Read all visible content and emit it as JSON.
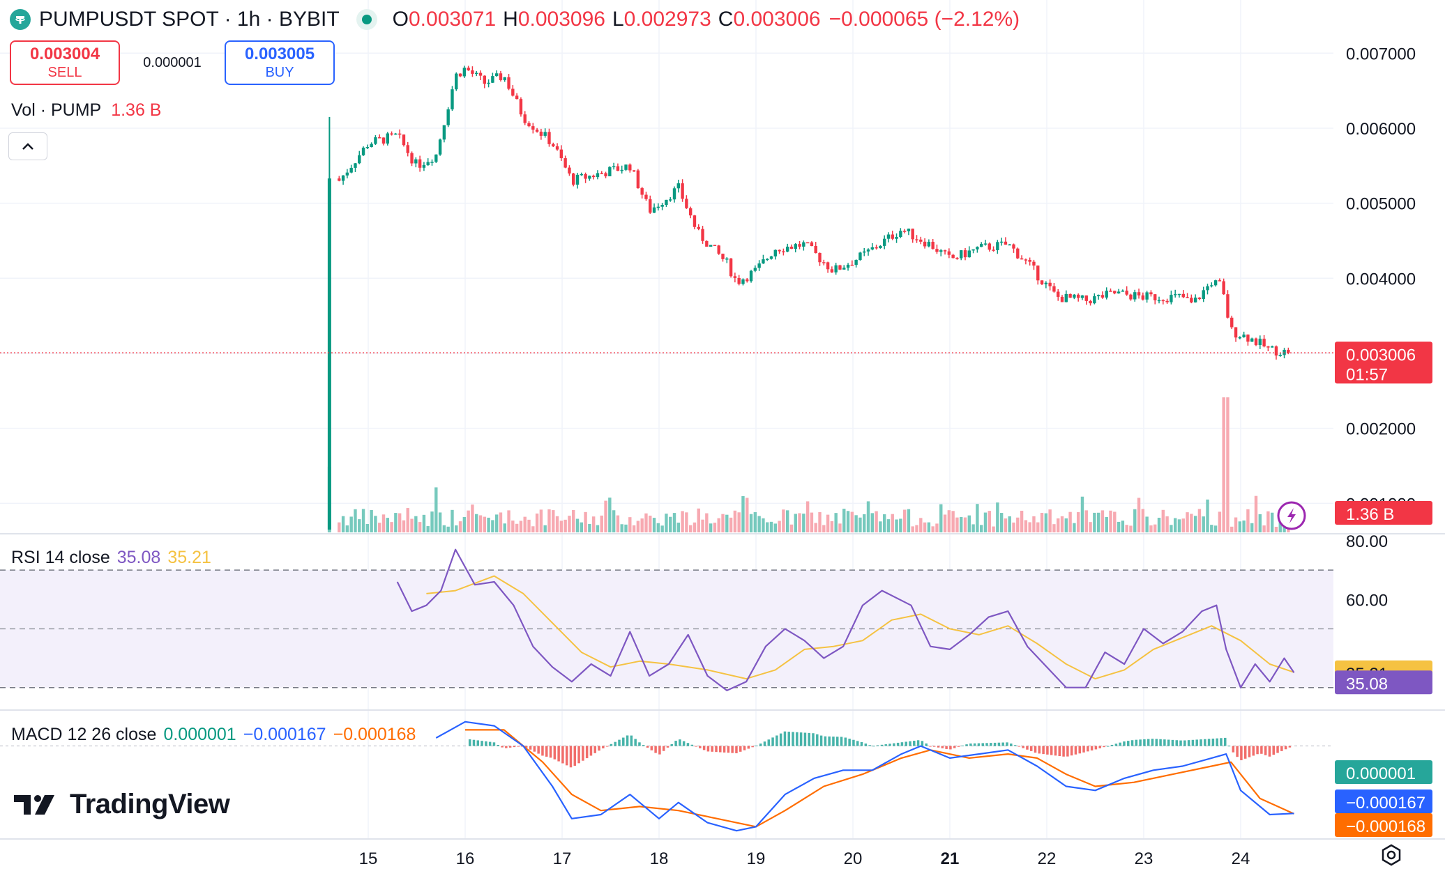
{
  "header": {
    "symbol_line": "PUMPUSDT SPOT · 1h · BYBIT",
    "ohlc": [
      {
        "key": "O",
        "value": "0.003071"
      },
      {
        "key": "H",
        "value": "0.003096"
      },
      {
        "key": "L",
        "value": "0.002973"
      },
      {
        "key": "C",
        "value": "0.003006"
      }
    ],
    "change": "−0.000065 (−2.12%)"
  },
  "trade": {
    "sell_price": "0.003004",
    "sell_label": "SELL",
    "spread": "0.000001",
    "buy_price": "0.003005",
    "buy_label": "BUY"
  },
  "volume_legend": {
    "label": "Vol · PUMP",
    "value": "1.36 B"
  },
  "rsi_legend": {
    "label": "RSI 14 close",
    "value": "35.08",
    "ma": "35.21"
  },
  "macd_legend": {
    "label": "MACD 12 26 close",
    "hist": "0.000001",
    "macd": "−0.000167",
    "signal": "−0.000168"
  },
  "branding": {
    "name": "TradingView"
  },
  "colors": {
    "up": "#089981",
    "down": "#f23645",
    "up_vol": "#76c9bd",
    "down_vol": "#f7a9b1",
    "rsi_line": "#7e57c2",
    "rsi_ma": "#f5c242",
    "macd_line": "#2962ff",
    "signal_line": "#ff6d00",
    "hist_up": "#26a69a",
    "hist_down": "#ef5350",
    "grid": "#f0f3fa"
  },
  "icons": {
    "logo": "tether-icon",
    "live": "live-dot-icon",
    "collapse": "chevron-up-icon",
    "lightning": "lightning-icon",
    "settings": "gear-icon"
  },
  "chart_data": [
    {
      "type": "candlestick",
      "symbol": "PUMPUSDT",
      "interval": "1h",
      "x_ticks": [
        "15",
        "16",
        "17",
        "18",
        "19",
        "20",
        "21",
        "22",
        "23",
        "24"
      ],
      "y_ticks": [
        "0.007000",
        "0.006000",
        "0.005000",
        "0.004000",
        "0.002000",
        "0.001000"
      ],
      "ylim": [
        0.00065,
        0.00717
      ],
      "last_price": "0.003006",
      "countdown": "01:57",
      "volume_label": "1.36 B",
      "close_path_daily": [
        {
          "day": 14.6,
          "open": 0.00065,
          "close": 0.00533
        },
        {
          "day": 14.7,
          "close": 0.0053
        },
        {
          "day": 15.0,
          "close": 0.0058
        },
        {
          "day": 15.3,
          "close": 0.0059
        },
        {
          "day": 15.5,
          "close": 0.0055
        },
        {
          "day": 15.7,
          "close": 0.00565
        },
        {
          "day": 15.9,
          "close": 0.0067
        },
        {
          "day": 16.0,
          "close": 0.0068
        },
        {
          "day": 16.2,
          "close": 0.0066
        },
        {
          "day": 16.4,
          "close": 0.0067
        },
        {
          "day": 16.6,
          "close": 0.00615
        },
        {
          "day": 16.9,
          "close": 0.0058
        },
        {
          "day": 17.1,
          "close": 0.0053
        },
        {
          "day": 17.4,
          "close": 0.0054
        },
        {
          "day": 17.7,
          "close": 0.0055
        },
        {
          "day": 17.9,
          "close": 0.0049
        },
        {
          "day": 18.2,
          "close": 0.0052
        },
        {
          "day": 18.4,
          "close": 0.0046
        },
        {
          "day": 18.7,
          "close": 0.0042
        },
        {
          "day": 18.8,
          "close": 0.00395
        },
        {
          "day": 19.0,
          "close": 0.0041
        },
        {
          "day": 19.2,
          "close": 0.0044
        },
        {
          "day": 19.5,
          "close": 0.00445
        },
        {
          "day": 19.8,
          "close": 0.0041
        },
        {
          "day": 20.1,
          "close": 0.0043
        },
        {
          "day": 20.5,
          "close": 0.00465
        },
        {
          "day": 20.8,
          "close": 0.00445
        },
        {
          "day": 21.0,
          "close": 0.00425
        },
        {
          "day": 21.3,
          "close": 0.0044
        },
        {
          "day": 21.6,
          "close": 0.00445
        },
        {
          "day": 21.8,
          "close": 0.0042
        },
        {
          "day": 22.1,
          "close": 0.00375
        },
        {
          "day": 22.4,
          "close": 0.0037
        },
        {
          "day": 22.7,
          "close": 0.0038
        },
        {
          "day": 23.0,
          "close": 0.00375
        },
        {
          "day": 23.4,
          "close": 0.00375
        },
        {
          "day": 23.5,
          "close": 0.00365
        },
        {
          "day": 23.7,
          "close": 0.00395
        },
        {
          "day": 23.8,
          "close": 0.0039
        },
        {
          "day": 23.9,
          "close": 0.0033
        },
        {
          "day": 24.1,
          "close": 0.0032
        },
        {
          "day": 24.3,
          "close": 0.00305
        },
        {
          "day": 24.5,
          "close": 0.003006
        }
      ],
      "volume_spikes": [
        {
          "day": 14.6,
          "value": 0.00095
        },
        {
          "day": 15.7,
          "value": 0.0006
        },
        {
          "day": 23.55,
          "value": 0.00022
        },
        {
          "day": 23.85,
          "value": 0.0018
        }
      ]
    },
    {
      "type": "line",
      "name": "RSI 14 close",
      "y_ticks": [
        "80.00",
        "60.00"
      ],
      "ylim": [
        24,
        80
      ],
      "levels": [
        70,
        50,
        30
      ],
      "rsi_value": "35.08",
      "ma_value": "35.21",
      "rsi": [
        {
          "day": 15.3,
          "value": 66
        },
        {
          "day": 15.45,
          "value": 56
        },
        {
          "day": 15.6,
          "value": 58
        },
        {
          "day": 15.75,
          "value": 63
        },
        {
          "day": 15.9,
          "value": 77
        },
        {
          "day": 16.1,
          "value": 65
        },
        {
          "day": 16.3,
          "value": 66
        },
        {
          "day": 16.5,
          "value": 58
        },
        {
          "day": 16.7,
          "value": 44
        },
        {
          "day": 16.9,
          "value": 37
        },
        {
          "day": 17.1,
          "value": 32
        },
        {
          "day": 17.3,
          "value": 38
        },
        {
          "day": 17.5,
          "value": 34
        },
        {
          "day": 17.7,
          "value": 49
        },
        {
          "day": 17.9,
          "value": 34
        },
        {
          "day": 18.1,
          "value": 38
        },
        {
          "day": 18.3,
          "value": 48
        },
        {
          "day": 18.5,
          "value": 34
        },
        {
          "day": 18.7,
          "value": 29
        },
        {
          "day": 18.9,
          "value": 32
        },
        {
          "day": 19.1,
          "value": 44
        },
        {
          "day": 19.3,
          "value": 50
        },
        {
          "day": 19.5,
          "value": 46
        },
        {
          "day": 19.7,
          "value": 40
        },
        {
          "day": 19.9,
          "value": 44
        },
        {
          "day": 20.1,
          "value": 58
        },
        {
          "day": 20.3,
          "value": 63
        },
        {
          "day": 20.6,
          "value": 58
        },
        {
          "day": 20.8,
          "value": 44
        },
        {
          "day": 21.0,
          "value": 43
        },
        {
          "day": 21.2,
          "value": 48
        },
        {
          "day": 21.4,
          "value": 54
        },
        {
          "day": 21.6,
          "value": 56
        },
        {
          "day": 21.8,
          "value": 44
        },
        {
          "day": 22.0,
          "value": 37
        },
        {
          "day": 22.2,
          "value": 30
        },
        {
          "day": 22.4,
          "value": 30
        },
        {
          "day": 22.6,
          "value": 42
        },
        {
          "day": 22.8,
          "value": 38
        },
        {
          "day": 23.0,
          "value": 50
        },
        {
          "day": 23.2,
          "value": 45
        },
        {
          "day": 23.4,
          "value": 49
        },
        {
          "day": 23.6,
          "value": 56
        },
        {
          "day": 23.75,
          "value": 58
        },
        {
          "day": 23.85,
          "value": 43
        },
        {
          "day": 24.0,
          "value": 30
        },
        {
          "day": 24.15,
          "value": 38
        },
        {
          "day": 24.3,
          "value": 32
        },
        {
          "day": 24.45,
          "value": 40
        },
        {
          "day": 24.55,
          "value": 35.08
        }
      ],
      "rsi_ma": [
        {
          "day": 15.6,
          "value": 62
        },
        {
          "day": 15.9,
          "value": 63
        },
        {
          "day": 16.3,
          "value": 68
        },
        {
          "day": 16.6,
          "value": 62
        },
        {
          "day": 16.9,
          "value": 52
        },
        {
          "day": 17.2,
          "value": 42
        },
        {
          "day": 17.5,
          "value": 37
        },
        {
          "day": 17.8,
          "value": 39
        },
        {
          "day": 18.1,
          "value": 38
        },
        {
          "day": 18.5,
          "value": 36
        },
        {
          "day": 18.9,
          "value": 33
        },
        {
          "day": 19.2,
          "value": 36
        },
        {
          "day": 19.5,
          "value": 43
        },
        {
          "day": 19.8,
          "value": 44
        },
        {
          "day": 20.1,
          "value": 46
        },
        {
          "day": 20.4,
          "value": 53
        },
        {
          "day": 20.7,
          "value": 55
        },
        {
          "day": 21.0,
          "value": 50
        },
        {
          "day": 21.3,
          "value": 48
        },
        {
          "day": 21.6,
          "value": 51
        },
        {
          "day": 21.9,
          "value": 45
        },
        {
          "day": 22.2,
          "value": 38
        },
        {
          "day": 22.5,
          "value": 33
        },
        {
          "day": 22.8,
          "value": 36
        },
        {
          "day": 23.1,
          "value": 43
        },
        {
          "day": 23.4,
          "value": 47
        },
        {
          "day": 23.7,
          "value": 51
        },
        {
          "day": 24.0,
          "value": 46
        },
        {
          "day": 24.3,
          "value": 38
        },
        {
          "day": 24.55,
          "value": 35.21
        }
      ]
    },
    {
      "type": "line",
      "name": "MACD 12 26 close",
      "hist_value": "0.000001",
      "macd_value": "−0.000167",
      "signal_value": "−0.000168",
      "ylim": [
        -0.00022,
        7e-05
      ],
      "macd": [
        {
          "day": 15.7,
          "value": 2e-05
        },
        {
          "day": 16.0,
          "value": 6e-05
        },
        {
          "day": 16.3,
          "value": 5e-05
        },
        {
          "day": 16.6,
          "value": 0.0
        },
        {
          "day": 16.9,
          "value": -0.0001
        },
        {
          "day": 17.1,
          "value": -0.00018
        },
        {
          "day": 17.4,
          "value": -0.00017
        },
        {
          "day": 17.7,
          "value": -0.00012
        },
        {
          "day": 18.0,
          "value": -0.00018
        },
        {
          "day": 18.2,
          "value": -0.00014
        },
        {
          "day": 18.5,
          "value": -0.00019
        },
        {
          "day": 18.8,
          "value": -0.00021
        },
        {
          "day": 19.0,
          "value": -0.0002
        },
        {
          "day": 19.3,
          "value": -0.00012
        },
        {
          "day": 19.6,
          "value": -8e-05
        },
        {
          "day": 19.9,
          "value": -6e-05
        },
        {
          "day": 20.2,
          "value": -6e-05
        },
        {
          "day": 20.5,
          "value": -2e-05
        },
        {
          "day": 20.7,
          "value": 0.0
        },
        {
          "day": 21.0,
          "value": -3e-05
        },
        {
          "day": 21.3,
          "value": -2e-05
        },
        {
          "day": 21.6,
          "value": -1e-05
        },
        {
          "day": 21.9,
          "value": -5e-05
        },
        {
          "day": 22.2,
          "value": -0.0001
        },
        {
          "day": 22.5,
          "value": -0.00011
        },
        {
          "day": 22.8,
          "value": -8e-05
        },
        {
          "day": 23.1,
          "value": -6e-05
        },
        {
          "day": 23.4,
          "value": -5e-05
        },
        {
          "day": 23.7,
          "value": -3e-05
        },
        {
          "day": 23.85,
          "value": -2e-05
        },
        {
          "day": 24.0,
          "value": -0.00011
        },
        {
          "day": 24.3,
          "value": -0.00017
        },
        {
          "day": 24.55,
          "value": -0.000167
        }
      ],
      "signal": [
        {
          "day": 16.0,
          "value": 4e-05
        },
        {
          "day": 16.4,
          "value": 4e-05
        },
        {
          "day": 16.8,
          "value": -4e-05
        },
        {
          "day": 17.1,
          "value": -0.00012
        },
        {
          "day": 17.4,
          "value": -0.00016
        },
        {
          "day": 17.8,
          "value": -0.00015
        },
        {
          "day": 18.2,
          "value": -0.00016
        },
        {
          "day": 18.6,
          "value": -0.00018
        },
        {
          "day": 19.0,
          "value": -0.0002
        },
        {
          "day": 19.3,
          "value": -0.00016
        },
        {
          "day": 19.7,
          "value": -0.0001
        },
        {
          "day": 20.1,
          "value": -7e-05
        },
        {
          "day": 20.5,
          "value": -3e-05
        },
        {
          "day": 20.8,
          "value": -1e-05
        },
        {
          "day": 21.2,
          "value": -3e-05
        },
        {
          "day": 21.6,
          "value": -2e-05
        },
        {
          "day": 21.9,
          "value": -3e-05
        },
        {
          "day": 22.2,
          "value": -7e-05
        },
        {
          "day": 22.5,
          "value": -0.0001
        },
        {
          "day": 22.9,
          "value": -9e-05
        },
        {
          "day": 23.3,
          "value": -7e-05
        },
        {
          "day": 23.7,
          "value": -5e-05
        },
        {
          "day": 23.9,
          "value": -4e-05
        },
        {
          "day": 24.2,
          "value": -0.00013
        },
        {
          "day": 24.55,
          "value": -0.000168
        }
      ]
    }
  ]
}
